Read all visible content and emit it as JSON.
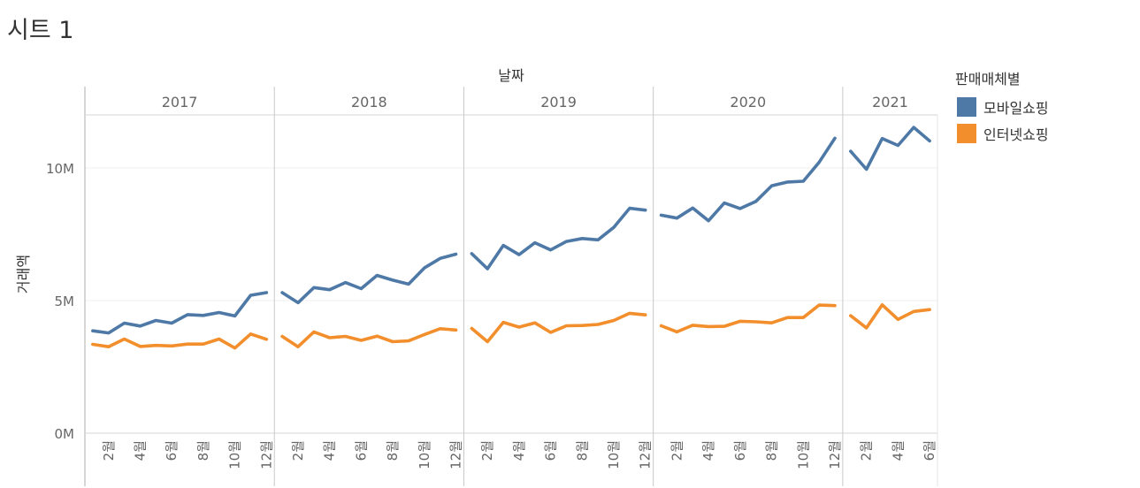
{
  "sheet": {
    "title": "시트 1"
  },
  "legend": {
    "title": "판매매체별",
    "items": [
      {
        "label": "모바일쇼핑",
        "color": "#4e79a7"
      },
      {
        "label": "인터넷쇼핑",
        "color": "#f28e2b"
      }
    ]
  },
  "chart_data": {
    "type": "line",
    "title": "",
    "xlabel": "날짜",
    "ylabel": "거래액",
    "y_ticks": [
      {
        "value": 0,
        "label": "0M"
      },
      {
        "value": 5000000,
        "label": "5M"
      },
      {
        "value": 10000000,
        "label": "10M"
      }
    ],
    "ylim": [
      0,
      12000000
    ],
    "grid": true,
    "legend_position": "right",
    "panels": [
      {
        "year": "2017",
        "months": 12,
        "tick_labels": [
          "2월",
          "4월",
          "6월",
          "8월",
          "10월",
          "12월"
        ]
      },
      {
        "year": "2018",
        "months": 12,
        "tick_labels": [
          "2월",
          "4월",
          "6월",
          "8월",
          "10월",
          "12월"
        ]
      },
      {
        "year": "2019",
        "months": 12,
        "tick_labels": [
          "2월",
          "4월",
          "6월",
          "8월",
          "10월",
          "12월"
        ]
      },
      {
        "year": "2020",
        "months": 12,
        "tick_labels": [
          "2월",
          "4월",
          "6월",
          "8월",
          "10월",
          "12월"
        ]
      },
      {
        "year": "2021",
        "months": 6,
        "tick_labels": [
          "2월",
          "4월",
          "6월"
        ]
      }
    ],
    "series": [
      {
        "name": "모바일쇼핑",
        "color": "#4e79a7",
        "values": {
          "2017": [
            3860000,
            3780000,
            4150000,
            4040000,
            4250000,
            4150000,
            4470000,
            4440000,
            4550000,
            4420000,
            5200000,
            5300000
          ],
          "2018": [
            5300000,
            4920000,
            5490000,
            5410000,
            5680000,
            5450000,
            5950000,
            5770000,
            5620000,
            6230000,
            6590000,
            6750000
          ],
          "2019": [
            6770000,
            6200000,
            7080000,
            6730000,
            7180000,
            6910000,
            7230000,
            7340000,
            7290000,
            7760000,
            8480000,
            8410000
          ],
          "2020": [
            8220000,
            8110000,
            8490000,
            8010000,
            8680000,
            8470000,
            8740000,
            9330000,
            9470000,
            9500000,
            10210000,
            11120000
          ],
          "2021": [
            10630000,
            9950000,
            11110000,
            10850000,
            11530000,
            11020000
          ]
        }
      },
      {
        "name": "인터넷쇼핑",
        "color": "#f28e2b",
        "values": {
          "2017": [
            3350000,
            3260000,
            3550000,
            3270000,
            3310000,
            3290000,
            3360000,
            3360000,
            3550000,
            3210000,
            3740000,
            3540000
          ],
          "2018": [
            3650000,
            3260000,
            3820000,
            3600000,
            3650000,
            3500000,
            3660000,
            3450000,
            3480000,
            3720000,
            3940000,
            3890000
          ],
          "2019": [
            3950000,
            3450000,
            4180000,
            4000000,
            4160000,
            3800000,
            4050000,
            4060000,
            4100000,
            4250000,
            4520000,
            4460000
          ],
          "2020": [
            4050000,
            3820000,
            4070000,
            4020000,
            4030000,
            4220000,
            4200000,
            4160000,
            4360000,
            4360000,
            4830000,
            4810000
          ],
          "2021": [
            4430000,
            3970000,
            4840000,
            4290000,
            4590000,
            4660000
          ]
        }
      }
    ]
  }
}
